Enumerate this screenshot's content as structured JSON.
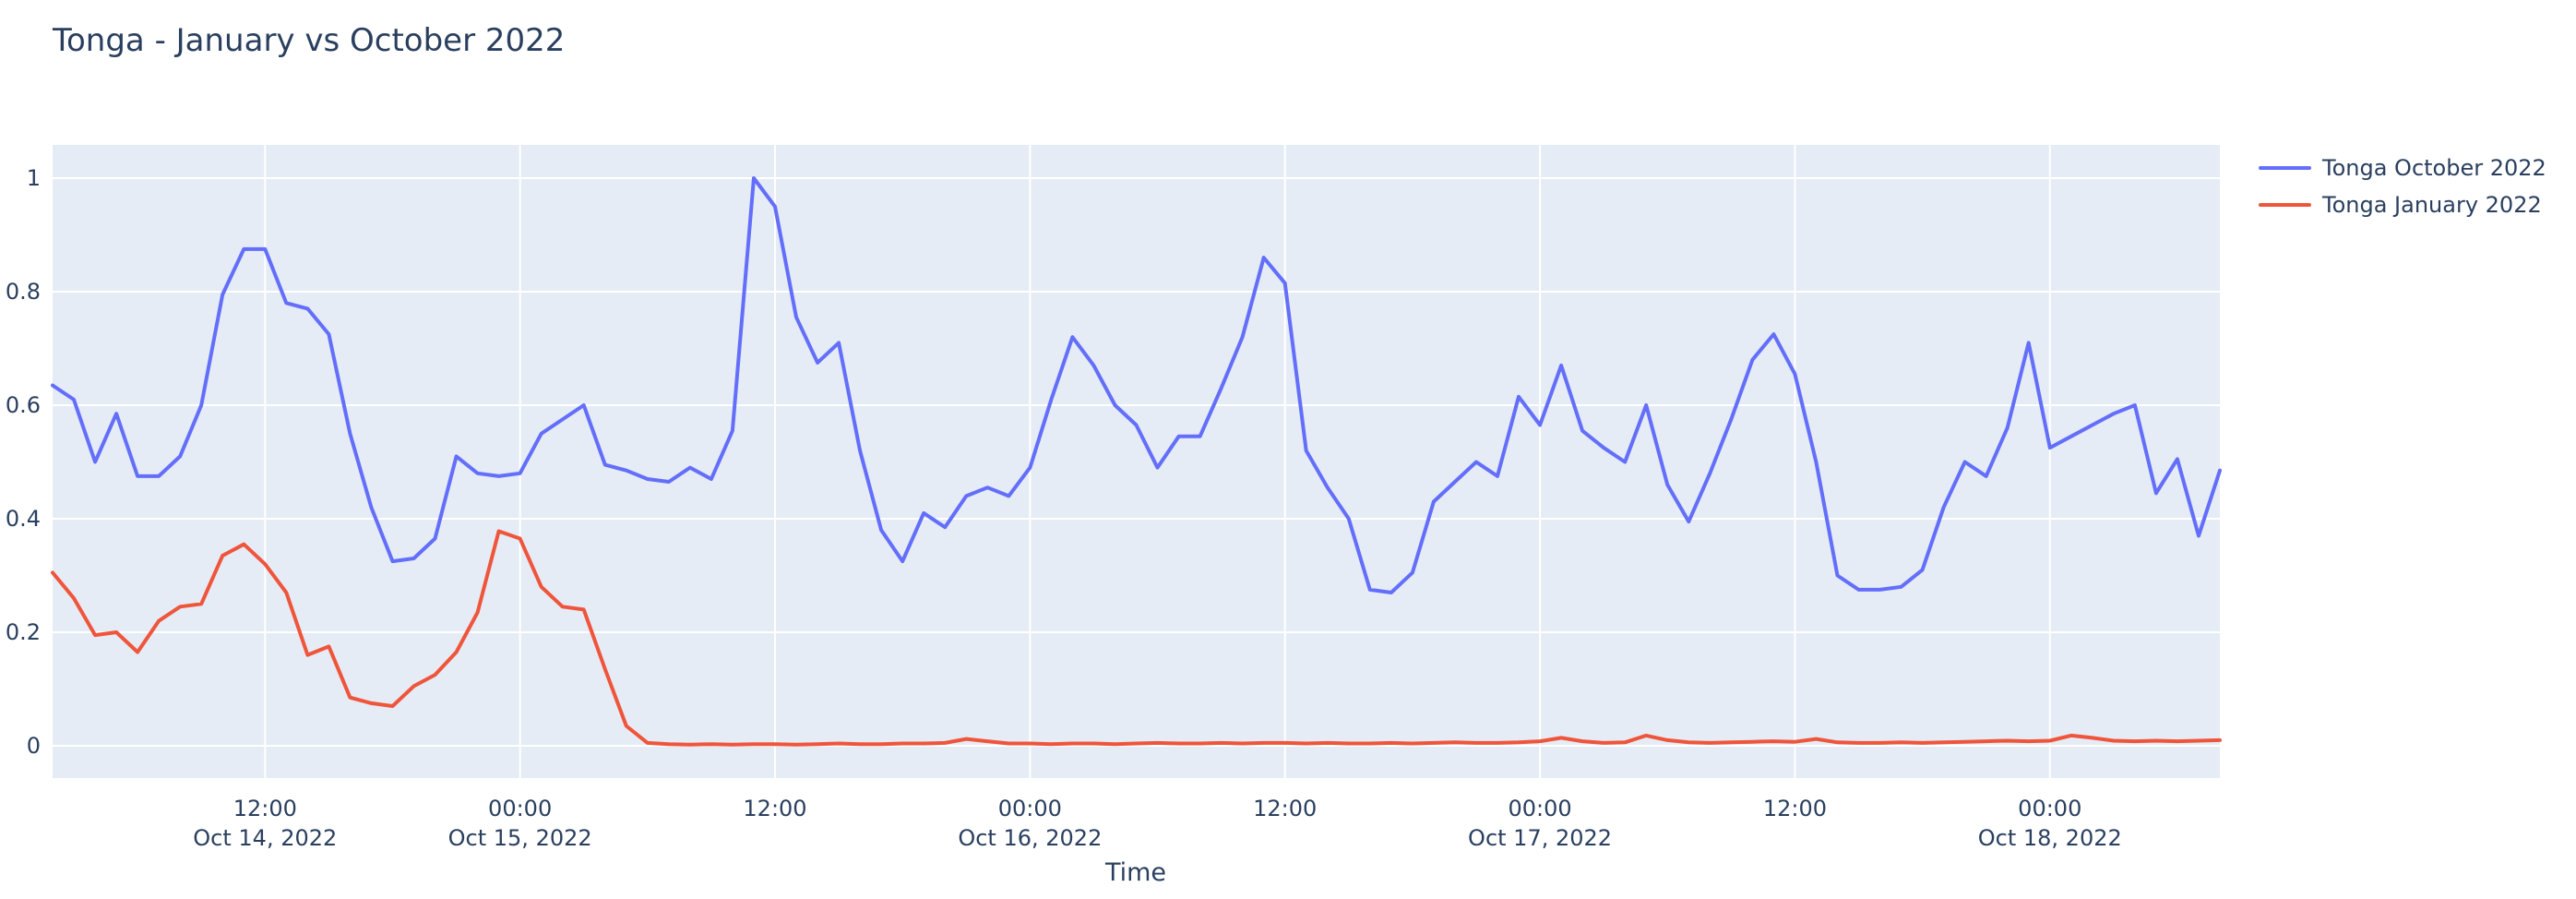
{
  "title": "Tonga - January vs October 2022",
  "colors": {
    "plot_background": "#E5ECF6",
    "gridline": "#FFFFFF",
    "text": "#2A3F5F",
    "series_october": "#636EFA",
    "series_january": "#EF553B"
  },
  "chart_data": {
    "type": "line",
    "title": "Tonga - January vs October 2022",
    "xlabel": "Time",
    "ylabel": "",
    "grid": true,
    "legend_position": "right-top-outside",
    "x_start": "2022-10-14 02:00",
    "x_step_hours": 1,
    "x_end": "2022-10-18 08:00",
    "ylim": [
      -0.057,
      1.058
    ],
    "y_ticks": [
      0,
      0.2,
      0.4,
      0.6,
      0.8,
      1
    ],
    "x_ticks": [
      {
        "hour_index": 10,
        "line1": "12:00",
        "line2": "Oct 14, 2022"
      },
      {
        "hour_index": 22,
        "line1": "00:00",
        "line2": "Oct 15, 2022"
      },
      {
        "hour_index": 34,
        "line1": "12:00",
        "line2": ""
      },
      {
        "hour_index": 46,
        "line1": "00:00",
        "line2": "Oct 16, 2022"
      },
      {
        "hour_index": 58,
        "line1": "12:00",
        "line2": ""
      },
      {
        "hour_index": 70,
        "line1": "00:00",
        "line2": "Oct 17, 2022"
      },
      {
        "hour_index": 82,
        "line1": "12:00",
        "line2": ""
      },
      {
        "hour_index": 94,
        "line1": "00:00",
        "line2": "Oct 18, 2022"
      }
    ],
    "series": [
      {
        "name": "Tonga October 2022",
        "color": "#636EFA",
        "values": [
          0.635,
          0.61,
          0.5,
          0.585,
          0.475,
          0.475,
          0.51,
          0.6,
          0.795,
          0.875,
          0.875,
          0.78,
          0.77,
          0.725,
          0.55,
          0.42,
          0.325,
          0.33,
          0.365,
          0.51,
          0.48,
          0.475,
          0.48,
          0.55,
          0.575,
          0.6,
          0.495,
          0.485,
          0.47,
          0.465,
          0.49,
          0.47,
          0.555,
          1.0,
          0.95,
          0.755,
          0.675,
          0.71,
          0.52,
          0.38,
          0.325,
          0.41,
          0.385,
          0.44,
          0.455,
          0.44,
          0.49,
          0.61,
          0.72,
          0.67,
          0.6,
          0.565,
          0.49,
          0.545,
          0.545,
          0.63,
          0.72,
          0.86,
          0.815,
          0.52,
          0.455,
          0.4,
          0.275,
          0.27,
          0.305,
          0.43,
          0.465,
          0.5,
          0.475,
          0.615,
          0.565,
          0.67,
          0.555,
          0.525,
          0.5,
          0.6,
          0.46,
          0.395,
          0.48,
          0.575,
          0.68,
          0.725,
          0.655,
          0.5,
          0.3,
          0.275,
          0.275,
          0.28,
          0.31,
          0.42,
          0.5,
          0.475,
          0.56,
          0.71,
          0.525,
          0.545,
          0.565,
          0.585,
          0.6,
          0.445,
          0.505,
          0.37,
          0.485
        ]
      },
      {
        "name": "Tonga January 2022",
        "color": "#EF553B",
        "values": [
          0.305,
          0.26,
          0.195,
          0.2,
          0.165,
          0.22,
          0.245,
          0.25,
          0.335,
          0.355,
          0.32,
          0.27,
          0.16,
          0.175,
          0.085,
          0.075,
          0.07,
          0.105,
          0.125,
          0.165,
          0.235,
          0.378,
          0.365,
          0.28,
          0.245,
          0.24,
          0.135,
          0.035,
          0.005,
          0.003,
          0.002,
          0.003,
          0.002,
          0.003,
          0.003,
          0.002,
          0.003,
          0.004,
          0.003,
          0.003,
          0.004,
          0.004,
          0.005,
          0.012,
          0.008,
          0.004,
          0.004,
          0.003,
          0.004,
          0.004,
          0.003,
          0.004,
          0.005,
          0.004,
          0.004,
          0.005,
          0.004,
          0.005,
          0.005,
          0.004,
          0.005,
          0.004,
          0.004,
          0.005,
          0.004,
          0.005,
          0.006,
          0.005,
          0.005,
          0.006,
          0.008,
          0.014,
          0.008,
          0.005,
          0.006,
          0.018,
          0.01,
          0.006,
          0.005,
          0.006,
          0.007,
          0.008,
          0.007,
          0.012,
          0.006,
          0.005,
          0.005,
          0.006,
          0.005,
          0.006,
          0.007,
          0.008,
          0.009,
          0.008,
          0.009,
          0.018,
          0.014,
          0.009,
          0.008,
          0.009,
          0.008,
          0.009,
          0.01
        ]
      }
    ]
  },
  "legend": {
    "items": [
      {
        "label": "Tonga October 2022"
      },
      {
        "label": "Tonga January 2022"
      }
    ]
  },
  "x_axis_title": "Time"
}
